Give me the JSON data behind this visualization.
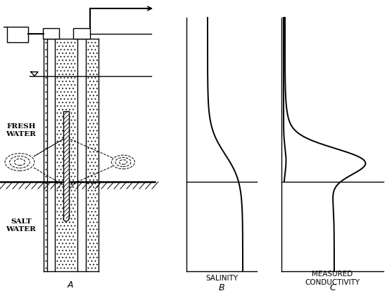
{
  "bg_color": "#ffffff",
  "lc": "#000000",
  "label_A": "A",
  "label_B": "B",
  "label_C": "C",
  "label_fresh": "FRESH\nWATER",
  "label_salt": "SALT\nWATER",
  "label_salinity": "SALINITY",
  "label_conductivity": "MEASURED\nCONDUCTIVITY",
  "label_C_letter": "C"
}
